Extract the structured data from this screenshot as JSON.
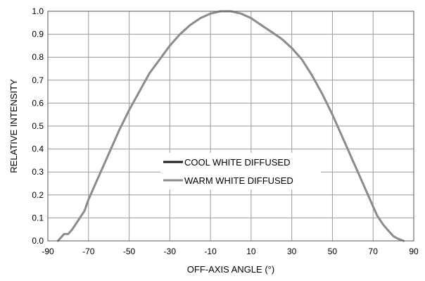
{
  "chart_data": {
    "type": "line",
    "title": "",
    "xlabel": "OFF-AXIS ANGLE (°)",
    "ylabel": "RELATIVE INTENSITY",
    "xlim": [
      -90,
      90
    ],
    "ylim": [
      0,
      1
    ],
    "x_ticks": [
      -90,
      -70,
      -50,
      -30,
      -10,
      10,
      30,
      50,
      70,
      90
    ],
    "x_tick_labels": [
      "-90",
      "-70",
      "-50",
      "-30",
      "-10",
      "10",
      "30",
      "50",
      "70",
      "90"
    ],
    "y_ticks": [
      0,
      0.1,
      0.2,
      0.3,
      0.4,
      0.5,
      0.6,
      0.7,
      0.8,
      0.9,
      1.0
    ],
    "y_tick_labels": [
      "0.0",
      "0.1",
      "0.2",
      "0.3",
      "0.4",
      "0.5",
      "0.6",
      "0.7",
      "0.8",
      "0.9",
      "1.0"
    ],
    "grid": true,
    "legend_position": "center",
    "series": [
      {
        "name": "COOL WHITE DIFFUSED",
        "color": "#1a1a1a",
        "x": [
          -85,
          -82,
          -80,
          -78,
          -75,
          -72,
          -70,
          -65,
          -60,
          -55,
          -50,
          -45,
          -40,
          -35,
          -30,
          -25,
          -20,
          -15,
          -10,
          -5,
          0,
          5,
          10,
          15,
          20,
          25,
          30,
          35,
          40,
          45,
          50,
          55,
          60,
          65,
          70,
          72,
          75,
          78,
          80,
          82,
          85
        ],
        "y": [
          0.0,
          0.03,
          0.03,
          0.05,
          0.09,
          0.13,
          0.18,
          0.28,
          0.38,
          0.48,
          0.57,
          0.65,
          0.73,
          0.79,
          0.85,
          0.9,
          0.94,
          0.97,
          0.99,
          1.0,
          1.0,
          0.99,
          0.97,
          0.94,
          0.91,
          0.88,
          0.84,
          0.79,
          0.72,
          0.64,
          0.55,
          0.45,
          0.35,
          0.25,
          0.15,
          0.11,
          0.07,
          0.04,
          0.02,
          0.01,
          0.0
        ]
      },
      {
        "name": "WARM WHITE DIFFUSED",
        "color": "#8c8c8c",
        "x": [
          -85,
          -82,
          -80,
          -78,
          -75,
          -72,
          -70,
          -65,
          -60,
          -55,
          -50,
          -45,
          -40,
          -35,
          -30,
          -25,
          -20,
          -15,
          -10,
          -5,
          0,
          5,
          10,
          15,
          20,
          25,
          30,
          35,
          40,
          45,
          50,
          55,
          60,
          65,
          70,
          72,
          75,
          78,
          80,
          82,
          85
        ],
        "y": [
          0.0,
          0.03,
          0.03,
          0.05,
          0.09,
          0.13,
          0.18,
          0.28,
          0.38,
          0.48,
          0.57,
          0.65,
          0.73,
          0.79,
          0.85,
          0.9,
          0.94,
          0.97,
          0.99,
          1.0,
          1.0,
          0.99,
          0.97,
          0.94,
          0.91,
          0.88,
          0.84,
          0.79,
          0.72,
          0.64,
          0.55,
          0.45,
          0.35,
          0.25,
          0.15,
          0.11,
          0.07,
          0.04,
          0.02,
          0.01,
          0.0
        ]
      }
    ]
  }
}
